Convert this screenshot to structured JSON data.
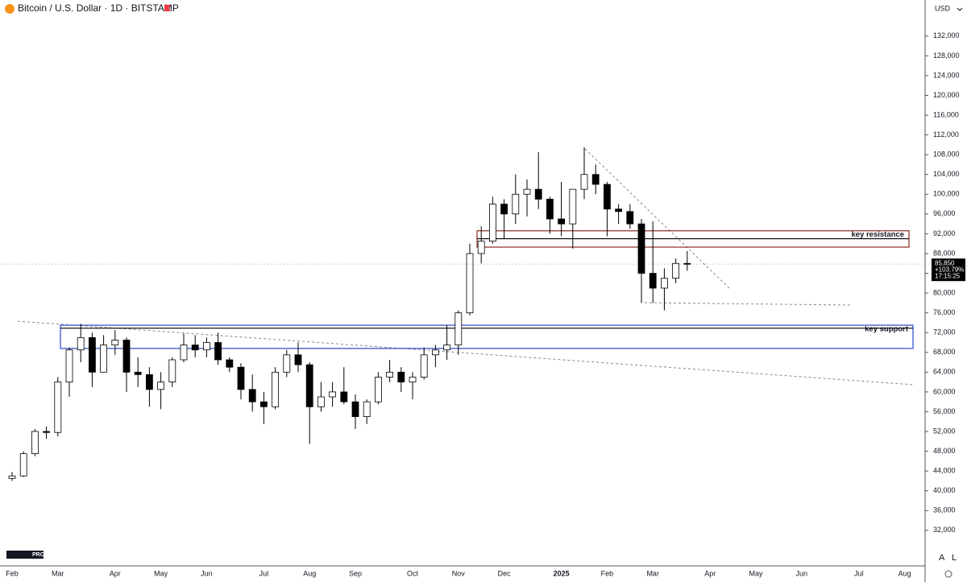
{
  "header": {
    "symbol": "Bitcoin / U.S. Dollar · 1D · BITSTAMP",
    "currency": "USD"
  },
  "chart_data": {
    "type": "candlestick",
    "categories": [
      "Feb",
      null,
      null,
      null,
      "Mar",
      null,
      null,
      null,
      null,
      "Apr",
      null,
      null,
      null,
      "May",
      null,
      null,
      null,
      "Jun",
      null,
      null,
      null,
      null,
      "Jul",
      null,
      null,
      null,
      "Aug",
      null,
      null,
      null,
      "Sep",
      null,
      null,
      null,
      null,
      "Oct",
      null,
      null,
      null,
      "Nov",
      null,
      null,
      null,
      "Dec",
      null,
      null,
      null,
      null,
      "2025",
      null,
      null,
      null,
      "Feb",
      null,
      null,
      null,
      "Mar",
      null,
      null,
      null,
      null,
      "Apr",
      null,
      null,
      null,
      "May",
      null,
      null,
      null,
      "Jun",
      null,
      null,
      null,
      null,
      "Jul",
      null,
      null,
      null,
      "Aug",
      null
    ],
    "open": [
      42500,
      43000,
      47500,
      52000,
      51800,
      62000,
      68500,
      71000,
      64000,
      69500,
      70500,
      64000,
      63500,
      60500,
      62000,
      66500,
      69500,
      68500,
      70000,
      66500,
      65000,
      60500,
      58000,
      57000,
      64000,
      67500,
      65500,
      57000,
      59000,
      60000,
      58000,
      55000,
      58000,
      63000,
      64000,
      62000,
      63000,
      67500,
      68500,
      69500,
      76000,
      88000,
      90500,
      98000,
      96000,
      100000,
      101000,
      99000,
      95000,
      94000,
      101000,
      104000,
      102000,
      97000,
      96500,
      94000,
      84000,
      81000,
      83000,
      86000,
      null,
      null,
      null,
      null,
      null,
      null,
      null,
      null,
      null,
      null,
      null,
      null,
      null,
      null,
      null,
      null,
      null,
      null,
      null,
      null
    ],
    "high": [
      43800,
      48000,
      52500,
      53000,
      63000,
      69000,
      73800,
      72000,
      71500,
      72500,
      71000,
      67000,
      65000,
      64000,
      67000,
      71800,
      71500,
      71000,
      72000,
      67000,
      65800,
      63500,
      60000,
      65000,
      68500,
      70000,
      66000,
      62000,
      62000,
      65000,
      59500,
      58500,
      64000,
      66500,
      65000,
      64000,
      69000,
      69500,
      73500,
      76500,
      90000,
      93500,
      99500,
      99000,
      104000,
      103000,
      108500,
      99500,
      102500,
      100500,
      109500,
      106000,
      102500,
      98000,
      98000,
      95000,
      94500,
      85000,
      87000,
      88500,
      null,
      null,
      null,
      null,
      null,
      null,
      null,
      null,
      null,
      null,
      null,
      null,
      null,
      null,
      null,
      null,
      null,
      null,
      null,
      null
    ],
    "low": [
      42000,
      42800,
      47000,
      50500,
      51000,
      59000,
      66000,
      61000,
      64000,
      67500,
      60000,
      61000,
      57000,
      56500,
      61000,
      66000,
      67000,
      67000,
      65500,
      64000,
      58500,
      56000,
      53500,
      56500,
      63000,
      64000,
      49500,
      56000,
      57000,
      57500,
      52500,
      53500,
      57500,
      62000,
      60000,
      58500,
      62500,
      65000,
      66500,
      67500,
      75500,
      86000,
      90000,
      91000,
      94000,
      95500,
      97000,
      92000,
      91500,
      89000,
      99000,
      100000,
      91500,
      94000,
      93000,
      78000,
      78000,
      76500,
      82000,
      84500,
      null,
      null,
      null,
      null,
      null,
      null,
      null,
      null,
      null,
      null,
      null,
      null,
      null,
      null,
      null,
      null,
      null,
      null,
      null,
      null
    ],
    "close": [
      43000,
      47500,
      52000,
      51800,
      62000,
      68500,
      71000,
      64000,
      69500,
      70500,
      64000,
      63500,
      60500,
      62000,
      66500,
      69500,
      68500,
      70000,
      66500,
      65000,
      60500,
      58000,
      57000,
      64000,
      67500,
      65500,
      57000,
      59000,
      60000,
      58000,
      55000,
      58000,
      63000,
      64000,
      62000,
      63000,
      67500,
      68500,
      69500,
      76000,
      88000,
      90500,
      98000,
      96000,
      100000,
      101000,
      99000,
      95000,
      94000,
      101000,
      104000,
      102000,
      97000,
      96500,
      94000,
      84000,
      81000,
      83000,
      86000,
      85850,
      null,
      null,
      null,
      null,
      null,
      null,
      null,
      null,
      null,
      null,
      null,
      null,
      null,
      null,
      null,
      null,
      null,
      null,
      null,
      null
    ],
    "up_color": "#ffffff",
    "down_color": "#000000",
    "ylim": [
      24800,
      139300
    ],
    "yticks": [
      {
        "value": 32000,
        "label": "32,000"
      },
      {
        "value": 36000,
        "label": "36,000"
      },
      {
        "value": 40000,
        "label": "40,000"
      },
      {
        "value": 44000,
        "label": "44,000"
      },
      {
        "value": 48000,
        "label": "48,000"
      },
      {
        "value": 52000,
        "label": "52,000"
      },
      {
        "value": 56000,
        "label": "56,000"
      },
      {
        "value": 60000,
        "label": "60,000"
      },
      {
        "value": 64000,
        "label": "64,000"
      },
      {
        "value": 68000,
        "label": "68,000"
      },
      {
        "value": 72000,
        "label": "72,000"
      },
      {
        "value": 76000,
        "label": "76,000"
      },
      {
        "value": 80000,
        "label": "80,000"
      },
      {
        "value": 84000,
        "label": "84,000"
      },
      {
        "value": 88000,
        "label": "88,000"
      },
      {
        "value": 92000,
        "label": "92,000"
      },
      {
        "value": 96000,
        "label": "96,000"
      },
      {
        "value": 100000,
        "label": "100,000"
      },
      {
        "value": 104000,
        "label": "104,000"
      },
      {
        "value": 108000,
        "label": "108,000"
      },
      {
        "value": 112000,
        "label": "112,000"
      },
      {
        "value": 116000,
        "label": "116,000"
      },
      {
        "value": 120000,
        "label": "120,000"
      },
      {
        "value": 124000,
        "label": "124,000"
      },
      {
        "value": 128000,
        "label": "128,000"
      },
      {
        "value": 132000,
        "label": "132,000"
      }
    ],
    "last_price": {
      "value": 85850,
      "label": "85,850"
    },
    "change": "+103.79%",
    "countdown": "17:15:25",
    "zones": [
      {
        "label": "key resistance",
        "top": 92600,
        "bottom": 89300,
        "line": 91000,
        "color": "#8b2a1e"
      },
      {
        "label": "key support",
        "top": 73500,
        "bottom": 68800,
        "line": 72900,
        "color": "#2a45c8"
      }
    ]
  },
  "footer": {
    "logo": "PRO",
    "buttons": [
      "A",
      "L"
    ]
  }
}
